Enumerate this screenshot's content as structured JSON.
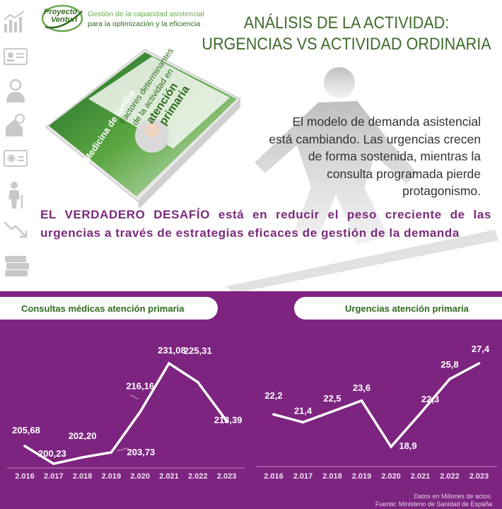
{
  "header": {
    "logo_name_line1": "Proyecto",
    "logo_name_line2": "Venturi",
    "logo_tag_line1": "Gestión de la capacidad asistencial",
    "logo_tag_line2": "para la optimización y la eficiencia",
    "title_line1": "ANÁLISIS DE LA ACTIVIDAD:",
    "title_line2": "URGENCIAS VS ACTIVIDAD ORDINARIA"
  },
  "book": {
    "spine": "Medicina de familia",
    "cover_line1": "Factores determinantes",
    "cover_line2": "de la actividad en",
    "cover_line3": "atención",
    "cover_line4": "primaria"
  },
  "intro_text": "El modelo de demanda asistencial está cambiando. Las urgencias crecen de forma sostenida, mientras la consulta programada pierde protagonismo.",
  "challenge_text": "EL VERDADERO DESAFÍO  está en reducir el peso creciente de las urgencias a través de estrategias eficaces de gestión de la demanda",
  "left_icons": [
    "bar-chart-icon",
    "id-card-icon",
    "doctor-icon",
    "house-care-icon",
    "medical-card-icon",
    "elderly-icon",
    "trend-down-icon",
    "books-icon"
  ],
  "colors": {
    "panel": "#7d2380",
    "green_dark": "#3f6a2c",
    "purple_text": "#7b2b7b"
  },
  "footnote_line1": "Datos en Millones de actos.",
  "footnote_line2": "Fuente: Ministerio de Sanidad de España",
  "chart_data": [
    {
      "type": "line",
      "title": "Consultas médicas atención primaria",
      "categories": [
        "2.016",
        "2.017",
        "2.018",
        "2.019",
        "2.020",
        "2.021",
        "2.022",
        "2.023"
      ],
      "values": [
        205.68,
        200.23,
        202.2,
        203.73,
        216.16,
        231.08,
        225.31,
        213.39
      ],
      "labels": [
        "205,68",
        "200,23",
        "202,20",
        "203,73",
        "216,16",
        "231,08",
        "225,31",
        "213,39"
      ],
      "color": "#ffffff",
      "grid": false
    },
    {
      "type": "line",
      "title": "Urgencias atención primaria",
      "categories": [
        "2.016",
        "2.017",
        "2.018",
        "2.019",
        "2.020",
        "2.021",
        "2.022",
        "2.023"
      ],
      "values": [
        22.2,
        21.4,
        22.5,
        23.6,
        18.9,
        22.3,
        25.8,
        27.4
      ],
      "labels": [
        "22,2",
        "21,4",
        "22,5",
        "23,6",
        "18,9",
        "22,3",
        "25,8",
        "27,4"
      ],
      "color": "#ffffff",
      "grid": false
    }
  ]
}
